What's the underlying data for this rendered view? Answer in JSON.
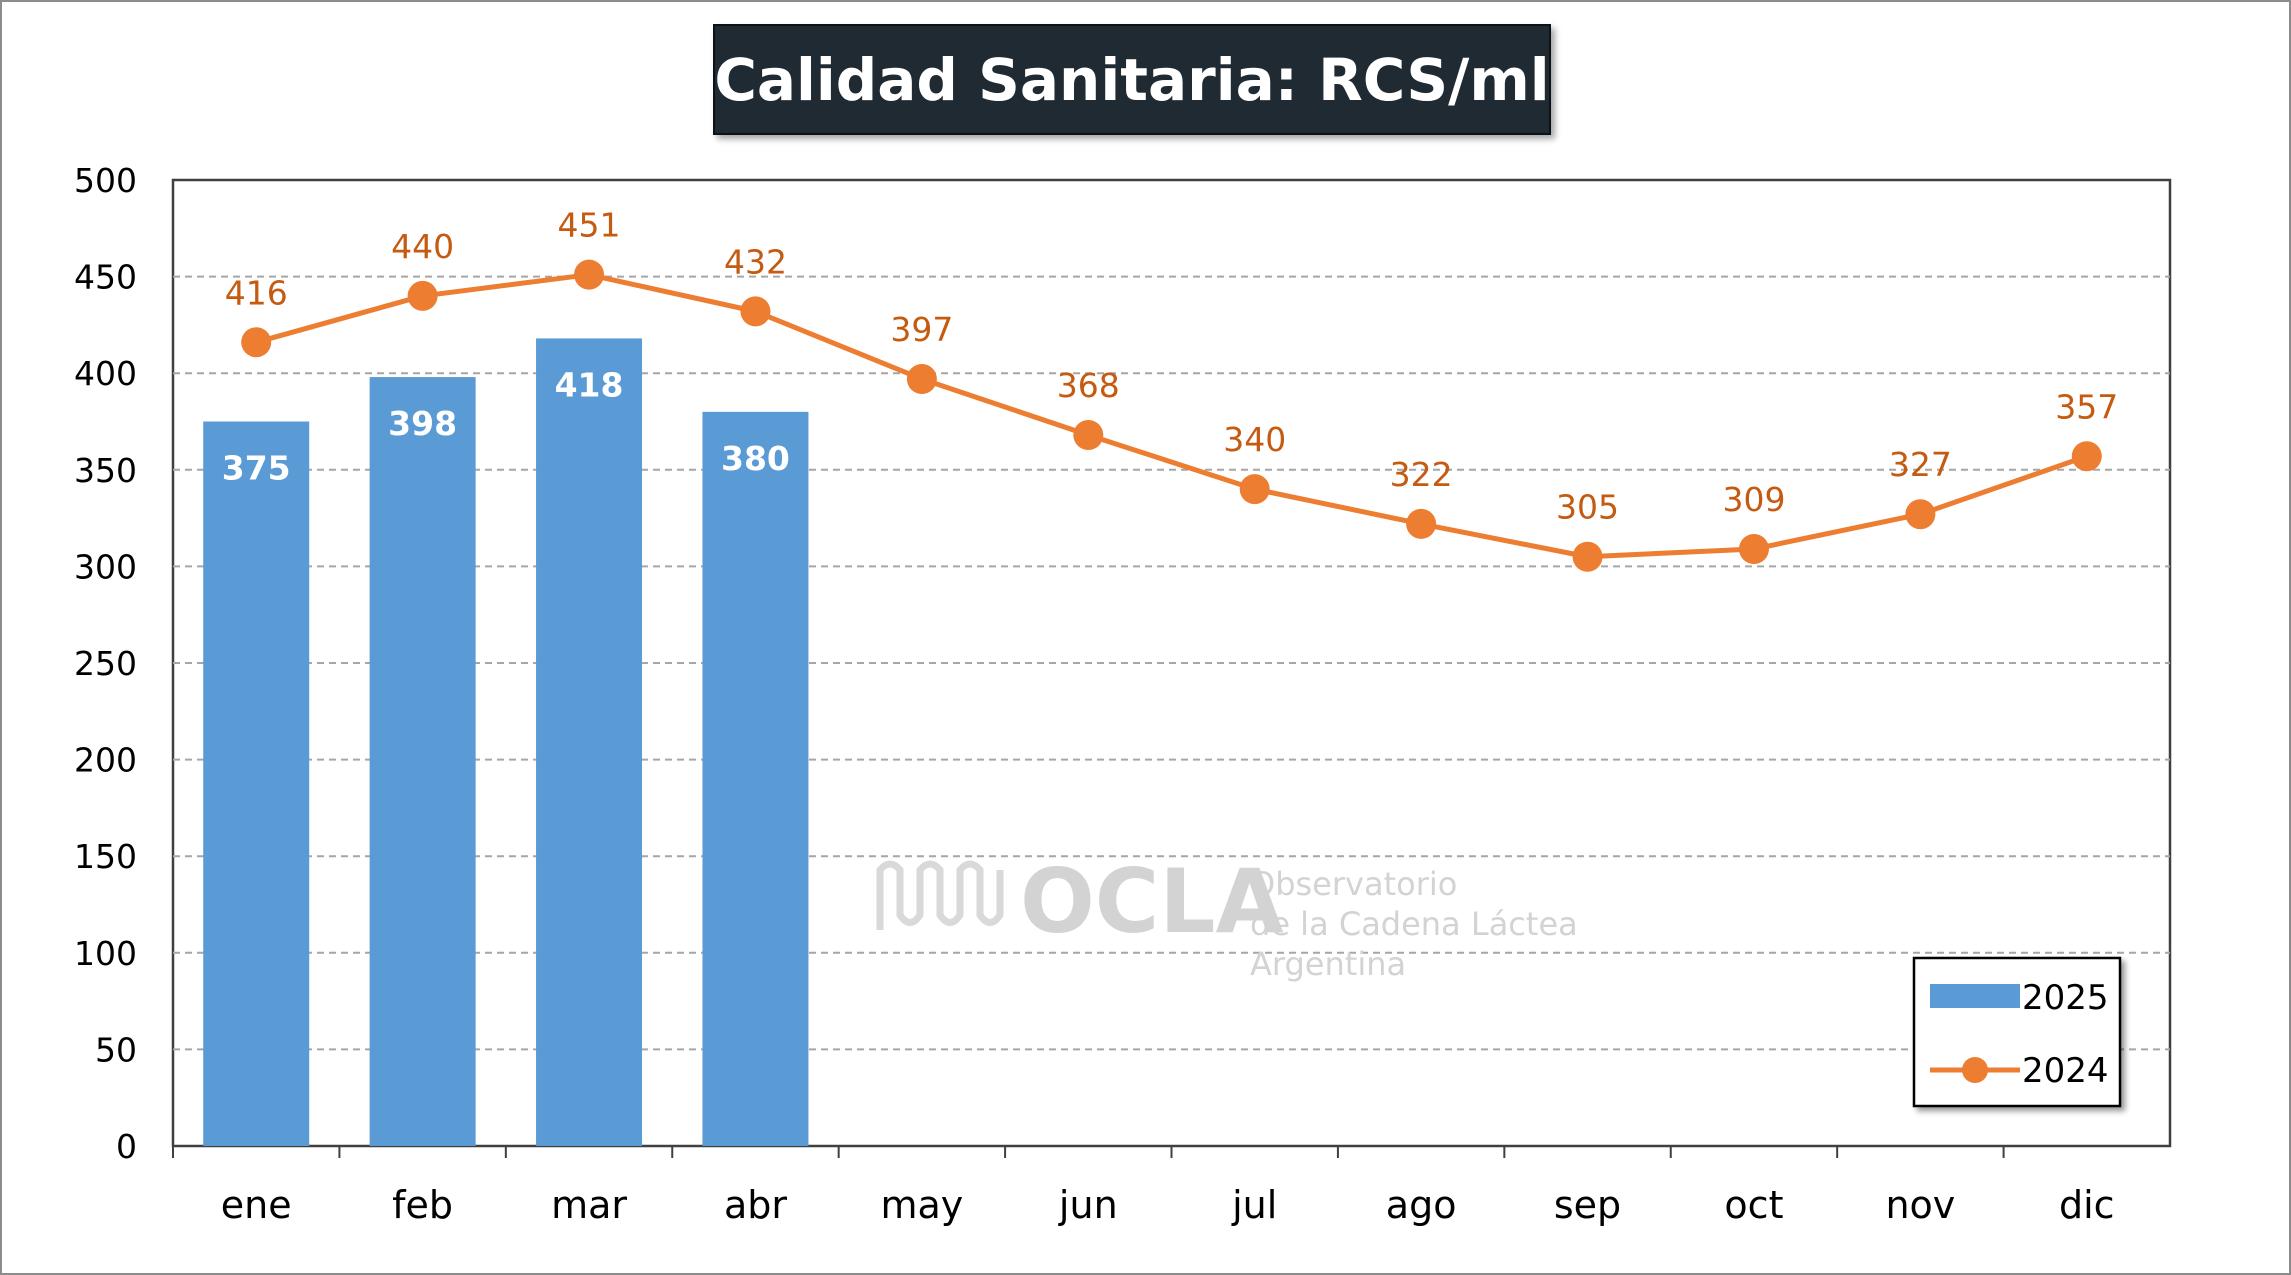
{
  "chart_data": {
    "type": "bar",
    "title": "Calidad Sanitaria: RCS/ml",
    "categories": [
      "ene",
      "feb",
      "mar",
      "abr",
      "may",
      "jun",
      "jul",
      "ago",
      "sep",
      "oct",
      "nov",
      "dic"
    ],
    "series": [
      {
        "name": "2025",
        "type": "bar",
        "color": "#5b9bd5",
        "values": [
          375,
          398,
          418,
          380,
          null,
          null,
          null,
          null,
          null,
          null,
          null,
          null
        ]
      },
      {
        "name": "2024",
        "type": "line",
        "color": "#ed7d31",
        "label_color": "#c55a11",
        "values": [
          416,
          440,
          451,
          432,
          397,
          368,
          340,
          322,
          305,
          309,
          327,
          357
        ]
      }
    ],
    "ylim": [
      0,
      500
    ],
    "yticks": [
      0,
      50,
      100,
      150,
      200,
      250,
      300,
      350,
      400,
      450,
      500
    ],
    "grid": true,
    "legend": "bottom-right"
  },
  "watermark": {
    "brand": "OCLA",
    "line1": "Observatorio",
    "line2": "de la Cadena Láctea",
    "line3": "Argentina"
  }
}
